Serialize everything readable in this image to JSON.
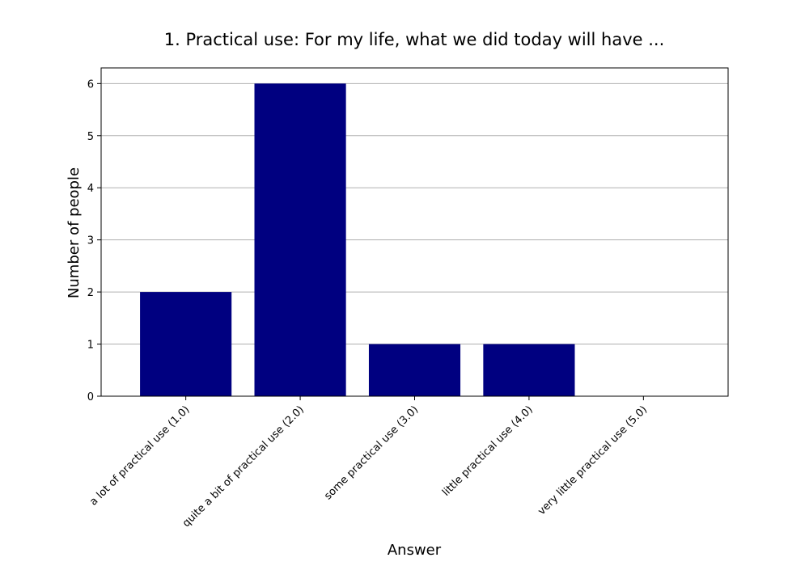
{
  "chart_data": {
    "type": "bar",
    "title": "1. Practical use: For my life, what we did today will have ...",
    "xlabel": "Answer",
    "ylabel": "Number of people",
    "categories": [
      "a lot of practical use (1.0)",
      "quite a bit of practical use (2.0)",
      "some practical use (3.0)",
      "little practical use (4.0)",
      "very little practical use (5.0)"
    ],
    "values": [
      2,
      6,
      1,
      1,
      0
    ],
    "ylim": [
      0,
      6.3
    ],
    "yticks": [
      "0",
      "1",
      "2",
      "3",
      "4",
      "5",
      "6"
    ],
    "grid": "y",
    "bar_color": "#000080"
  }
}
